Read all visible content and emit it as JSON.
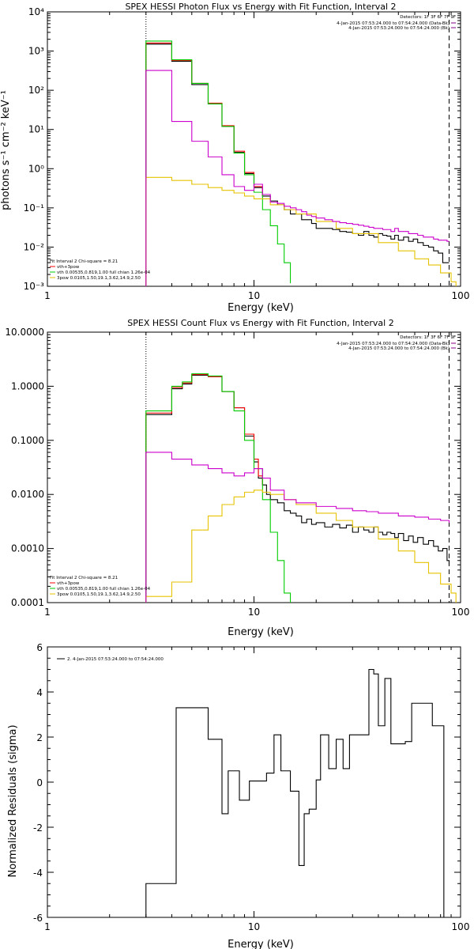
{
  "chart_data": [
    {
      "type": "line",
      "title": "SPEX HESSI Photon Flux vs Energy with Fit Function, Interval 2",
      "xlabel": "Energy (keV)",
      "ylabel": "photons s⁻¹ cm⁻² keV⁻¹",
      "xscale": "log",
      "yscale": "log",
      "xlim": [
        1,
        100
      ],
      "ylim": [
        0.001,
        10000
      ],
      "xticks": [
        "1",
        "10",
        "100"
      ],
      "yticks": [
        "10⁻³",
        "10⁻²",
        "10⁻¹",
        "10⁰",
        "10¹",
        "10²",
        "10³",
        "10⁴"
      ],
      "detectors_label": "Detectors: 1F 3F 6F 7F 9F",
      "legend_right": [
        {
          "text": "4-Jan-2015 07:53:24.000 to 07:54:24.000 (Data-Bk)",
          "color": "#8b008b"
        },
        {
          "text": "4-Jan-2015 07:53:24.000 to 07:54:24.000 (Bk)",
          "color": "#8b008b"
        }
      ],
      "legend_left": [
        {
          "text": "Fit Interval 2   Chi-square = 8.21",
          "color": "#000000"
        },
        {
          "text": "vth+3pow",
          "color": "#ff0000"
        },
        {
          "text": "vth 0.00535,0.819,1.00  full chian 1.26e-04",
          "color": "#00cc00"
        },
        {
          "text": "3pow 0.0105,1.50,19.1,3.62,14.9,2.50",
          "color": "#e6c200"
        }
      ],
      "vlines": [
        3.0,
        88
      ],
      "series": [
        {
          "name": "Data-Bk",
          "color": "#000000",
          "x": [
            3,
            3.5,
            4,
            4.5,
            5,
            5.5,
            6,
            6.5,
            7,
            7.5,
            8,
            8.5,
            9,
            9.5,
            10,
            10.5,
            11,
            11.5,
            12,
            13,
            14,
            15,
            16,
            17,
            18,
            19,
            20,
            22,
            24,
            26,
            28,
            30,
            32,
            34,
            36,
            38,
            40,
            42,
            44,
            46,
            48,
            50,
            53,
            56,
            59,
            62,
            66,
            70,
            74,
            78,
            82,
            86,
            88
          ],
          "y": [
            1500,
            1500,
            550,
            550,
            140,
            140,
            45,
            45,
            12,
            12,
            2.6,
            2.6,
            0.75,
            0.75,
            0.33,
            0.33,
            0.2,
            0.2,
            0.15,
            0.12,
            0.09,
            0.07,
            0.07,
            0.05,
            0.05,
            0.04,
            0.03,
            0.03,
            0.028,
            0.025,
            0.024,
            0.022,
            0.02,
            0.025,
            0.02,
            0.018,
            0.022,
            0.02,
            0.019,
            0.016,
            0.02,
            0.015,
            0.018,
            0.014,
            0.016,
            0.013,
            0.011,
            0.01,
            0.008,
            0.007,
            0.004,
            0.004,
            0.004
          ]
        },
        {
          "name": "vth+3pow",
          "color": "#ff0000",
          "x": [
            3,
            3.5,
            4,
            4.5,
            5,
            5.5,
            6,
            6.5,
            7,
            7.5,
            8,
            8.5,
            9,
            9.5,
            10,
            10.5,
            11
          ],
          "y": [
            1600,
            1600,
            580,
            580,
            150,
            150,
            47,
            47,
            12.5,
            12.5,
            2.8,
            2.8,
            0.8,
            0.8,
            0.35,
            0.35,
            0.2
          ]
        },
        {
          "name": "vth",
          "color": "#00cc00",
          "x": [
            3,
            3.5,
            4,
            4.5,
            5,
            5.5,
            6,
            6.5,
            7,
            7.5,
            8,
            8.5,
            9,
            9.5,
            10,
            10.5,
            11,
            11.5,
            12,
            13,
            14,
            15
          ],
          "y": [
            1800,
            1800,
            600,
            600,
            150,
            150,
            45,
            45,
            12,
            12,
            2.5,
            2.5,
            0.7,
            0.7,
            0.25,
            0.25,
            0.09,
            0.09,
            0.035,
            0.012,
            0.004,
            0.0012
          ]
        },
        {
          "name": "3pow",
          "color": "#e6c200",
          "x": [
            3,
            4,
            5,
            6,
            7,
            8,
            9,
            10,
            12,
            14,
            16,
            20,
            25,
            30,
            40,
            50,
            60,
            70,
            80,
            90,
            95
          ],
          "y": [
            0.6,
            0.5,
            0.4,
            0.33,
            0.28,
            0.24,
            0.2,
            0.17,
            0.12,
            0.09,
            0.07,
            0.045,
            0.03,
            0.022,
            0.013,
            0.008,
            0.005,
            0.0035,
            0.0022,
            0.0013,
            0.001
          ]
        },
        {
          "name": "Bk",
          "color": "#cc00cc",
          "x": [
            3,
            3.5,
            4,
            4.5,
            5,
            5.5,
            6,
            6.5,
            7,
            7.5,
            8,
            8.5,
            9,
            9.5,
            10,
            10.5,
            11,
            11.5,
            12,
            13,
            14,
            15,
            16,
            17,
            18,
            19,
            20,
            22,
            24,
            26,
            28,
            30,
            32,
            34,
            36,
            38,
            40,
            42,
            44,
            46,
            48,
            50,
            53,
            56,
            59,
            62,
            66,
            70,
            74,
            78,
            82,
            86,
            88
          ],
          "y": [
            320,
            320,
            16,
            16,
            5,
            5,
            2,
            2,
            0.7,
            0.7,
            0.35,
            0.35,
            0.28,
            0.28,
            0.4,
            0.4,
            0.22,
            0.22,
            0.14,
            0.13,
            0.11,
            0.1,
            0.09,
            0.08,
            0.065,
            0.06,
            0.055,
            0.05,
            0.045,
            0.042,
            0.04,
            0.038,
            0.036,
            0.034,
            0.032,
            0.03,
            0.03,
            0.028,
            0.028,
            0.025,
            0.03,
            0.025,
            0.025,
            0.022,
            0.022,
            0.02,
            0.018,
            0.018,
            0.016,
            0.015,
            0.015,
            0.014,
            0.014
          ]
        }
      ]
    },
    {
      "type": "line",
      "title": "SPEX HESSI Count Flux vs Energy with Fit Function, Interval 2",
      "xlabel": "Energy (keV)",
      "ylabel": "",
      "xscale": "log",
      "yscale": "log",
      "xlim": [
        1,
        100
      ],
      "ylim": [
        0.0001,
        10
      ],
      "xticks": [
        "1",
        "10",
        "100"
      ],
      "yticks": [
        "0.0001",
        "0.0010",
        "0.0100",
        "0.1000",
        "1.0000",
        "10.0000"
      ],
      "detectors_label": "Detectors: 1F 3F 6F 7F 9F",
      "legend_right": [
        {
          "text": "4-Jan-2015 07:53:24.000 to 07:54:24.000 (Data-Bk)",
          "color": "#8b008b"
        },
        {
          "text": "4-Jan-2015 07:53:24.000 to 07:54:24.000 (Bk)",
          "color": "#8b008b"
        }
      ],
      "legend_left": [
        {
          "text": "Fit Interval 2   Chi-square = 8.21",
          "color": "#000000"
        },
        {
          "text": "vth+3pow",
          "color": "#ff0000"
        },
        {
          "text": "vth 0.00535,0.819,1.00  full chian 1.26e-04",
          "color": "#00cc00"
        },
        {
          "text": "3pow 0.0105,1.50,19.1,3.62,14.9,2.50",
          "color": "#e6c200"
        }
      ],
      "vlines": [
        3.0,
        88
      ],
      "series": [
        {
          "name": "Data-Bk",
          "color": "#000000",
          "x": [
            3,
            4,
            4.5,
            5,
            6,
            7,
            8,
            9,
            10,
            10.5,
            11,
            11.5,
            12,
            13,
            14,
            15,
            16,
            17,
            18,
            19,
            20,
            22,
            24,
            26,
            28,
            30,
            32,
            34,
            36,
            38,
            40,
            42,
            44,
            46,
            48,
            50,
            53,
            56,
            59,
            62,
            66,
            70,
            74,
            78,
            82,
            86,
            88
          ],
          "y": [
            0.3,
            0.9,
            1.1,
            1.6,
            1.5,
            0.8,
            0.4,
            0.12,
            0.04,
            0.02,
            0.015,
            0.01,
            0.008,
            0.007,
            0.005,
            0.0045,
            0.004,
            0.003,
            0.0035,
            0.0028,
            0.003,
            0.0025,
            0.0028,
            0.0024,
            0.0027,
            0.002,
            0.0025,
            0.0022,
            0.002,
            0.0025,
            0.002,
            0.0018,
            0.002,
            0.0019,
            0.0016,
            0.0019,
            0.0014,
            0.0017,
            0.0013,
            0.0016,
            0.0012,
            0.0014,
            0.0011,
            0.0009,
            0.001,
            0.0006,
            0.0005
          ]
        },
        {
          "name": "vth+3pow",
          "color": "#ff0000",
          "x": [
            3,
            4,
            4.5,
            5,
            6,
            7,
            8,
            9,
            10,
            10.5,
            11
          ],
          "y": [
            0.32,
            0.95,
            1.15,
            1.65,
            1.5,
            0.8,
            0.4,
            0.13,
            0.045,
            0.022,
            0.015
          ]
        },
        {
          "name": "vth",
          "color": "#00cc00",
          "x": [
            3,
            4,
            4.5,
            5,
            6,
            7,
            8,
            9,
            10,
            11,
            12,
            13,
            14,
            15
          ],
          "y": [
            0.35,
            1.0,
            1.2,
            1.7,
            1.55,
            0.8,
            0.35,
            0.1,
            0.03,
            0.008,
            0.002,
            0.0006,
            0.00015,
            0.0001
          ]
        },
        {
          "name": "3pow",
          "color": "#e6c200",
          "x": [
            3,
            4,
            5,
            6,
            7,
            8,
            9,
            10,
            11,
            12,
            14,
            16,
            20,
            25,
            30,
            40,
            50,
            60,
            70,
            80,
            90,
            95
          ],
          "y": [
            0.00013,
            0.00024,
            0.0022,
            0.004,
            0.0065,
            0.009,
            0.011,
            0.012,
            0.011,
            0.01,
            0.008,
            0.0065,
            0.0045,
            0.0033,
            0.0025,
            0.0015,
            0.0009,
            0.00055,
            0.00035,
            0.00022,
            0.00015,
            0.0001
          ]
        },
        {
          "name": "Bk",
          "color": "#cc00cc",
          "x": [
            3,
            4,
            5,
            6,
            7,
            8,
            9,
            10,
            11,
            12,
            14,
            16,
            20,
            25,
            30,
            35,
            40,
            50,
            60,
            70,
            80,
            88
          ],
          "y": [
            0.06,
            0.045,
            0.035,
            0.03,
            0.025,
            0.022,
            0.025,
            0.03,
            0.02,
            0.012,
            0.008,
            0.007,
            0.006,
            0.0055,
            0.005,
            0.0048,
            0.0045,
            0.004,
            0.0038,
            0.0035,
            0.0033,
            0.003
          ]
        }
      ]
    },
    {
      "type": "line",
      "title": "",
      "xlabel": "Energy (keV)",
      "ylabel": "Normalized Residuals (sigma)",
      "xscale": "log",
      "yscale": "linear",
      "xlim": [
        1,
        100
      ],
      "ylim": [
        -6,
        6
      ],
      "xticks": [
        "1",
        "10",
        "100"
      ],
      "yticks": [
        "-6",
        "-4",
        "-2",
        "0",
        "2",
        "4",
        "6"
      ],
      "legend_left": [
        {
          "text": "2.  4-Jan-2015 07:53:24.000 to 07:54:24.000",
          "color": "#000000"
        }
      ],
      "series": [
        {
          "name": "",
          "color": "#000000",
          "x": [
            3,
            4.2,
            5.2,
            6,
            7,
            7.5,
            8.5,
            9.5,
            10.5,
            11.5,
            12.5,
            13.5,
            15,
            16.5,
            17.5,
            18.5,
            20,
            21,
            23,
            25,
            27,
            29,
            31,
            34,
            36,
            38,
            40,
            43,
            46,
            50,
            54,
            58,
            63,
            68,
            73,
            78,
            83,
            88
          ],
          "y": [
            -4.5,
            3.3,
            3.3,
            1.9,
            -1.4,
            0.5,
            -0.8,
            0.05,
            0.05,
            0.4,
            2.1,
            0.5,
            -0.4,
            -3.7,
            -1.4,
            -1.2,
            0.1,
            2.1,
            0.6,
            1.9,
            0.6,
            2.1,
            2.1,
            2.1,
            5.0,
            4.8,
            2.5,
            4.6,
            1.7,
            1.7,
            1.8,
            3.5,
            3.5,
            3.5,
            2.5,
            2.5,
            -6.0,
            -6.0
          ]
        }
      ]
    }
  ]
}
